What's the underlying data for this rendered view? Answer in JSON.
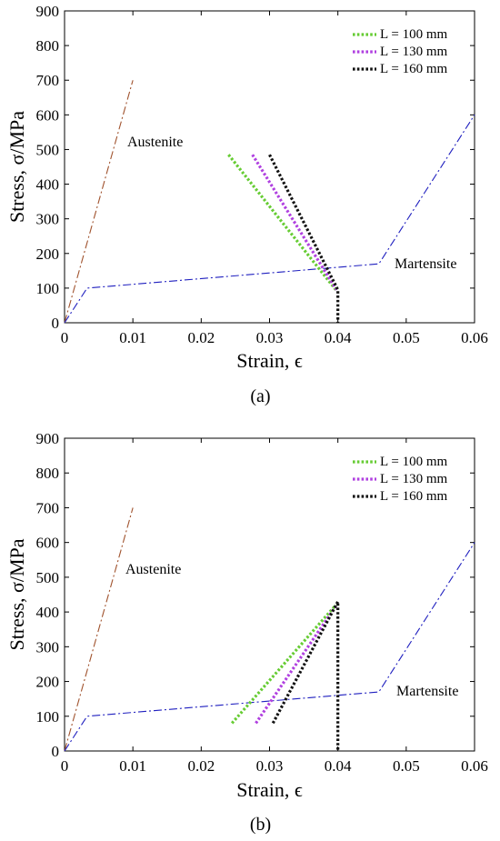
{
  "chart_data": [
    {
      "type": "line",
      "caption": "(a)",
      "xlabel": "Strain, ϵ",
      "ylabel": "Stress, σ/MPa",
      "xlim": [
        0,
        0.06
      ],
      "ylim": [
        0,
        900
      ],
      "xticks": [
        "0",
        "0.01",
        "0.02",
        "0.03",
        "0.04",
        "0.05",
        "0.06"
      ],
      "yticks": [
        "0",
        "100",
        "200",
        "300",
        "400",
        "500",
        "600",
        "700",
        "800",
        "900"
      ],
      "legend_position": "top-right",
      "reference_lines": [
        {
          "label": "Austenite",
          "color": "#a0522d",
          "style": "dashdot",
          "x": [
            0,
            0.01
          ],
          "y": [
            0,
            700
          ]
        },
        {
          "label": "Martensite",
          "color": "#1f1fbf",
          "style": "dashdot",
          "x": [
            0,
            0.0033,
            0.046,
            0.06
          ],
          "y": [
            0,
            100,
            170,
            600
          ]
        }
      ],
      "series": [
        {
          "name": "L = 100 mm",
          "color": "#66cc33",
          "x": [
            0.024,
            0.0397
          ],
          "y": [
            485,
            95
          ]
        },
        {
          "name": "L = 130 mm",
          "color": "#b040e0",
          "x": [
            0.0275,
            0.0398
          ],
          "y": [
            485,
            95
          ]
        },
        {
          "name": "L = 160 mm",
          "color": "#111111",
          "x": [
            0.03,
            0.04,
            0.04,
            0.04
          ],
          "y": [
            485,
            95,
            80,
            0
          ]
        }
      ]
    },
    {
      "type": "line",
      "caption": "(b)",
      "xlabel": "Strain, ϵ",
      "ylabel": "Stress, σ/MPa",
      "xlim": [
        0,
        0.06
      ],
      "ylim": [
        0,
        900
      ],
      "xticks": [
        "0",
        "0.01",
        "0.02",
        "0.03",
        "0.04",
        "0.05",
        "0.06"
      ],
      "yticks": [
        "0",
        "100",
        "200",
        "300",
        "400",
        "500",
        "600",
        "700",
        "800",
        "900"
      ],
      "legend_position": "top-right",
      "reference_lines": [
        {
          "label": "Austenite",
          "color": "#a0522d",
          "style": "dashdot",
          "x": [
            0,
            0.01
          ],
          "y": [
            0,
            700
          ]
        },
        {
          "label": "Martensite",
          "color": "#1f1fbf",
          "style": "dashdot",
          "x": [
            0,
            0.0033,
            0.046,
            0.06
          ],
          "y": [
            0,
            100,
            170,
            600
          ]
        }
      ],
      "series": [
        {
          "name": "L = 100 mm",
          "color": "#66cc33",
          "x": [
            0.0245,
            0.0397
          ],
          "y": [
            80,
            420
          ]
        },
        {
          "name": "L = 130 mm",
          "color": "#b040e0",
          "x": [
            0.028,
            0.0398
          ],
          "y": [
            80,
            420
          ]
        },
        {
          "name": "L = 160 mm",
          "color": "#111111",
          "x": [
            0.0305,
            0.04,
            0.04
          ],
          "y": [
            80,
            430,
            0
          ]
        }
      ]
    }
  ]
}
